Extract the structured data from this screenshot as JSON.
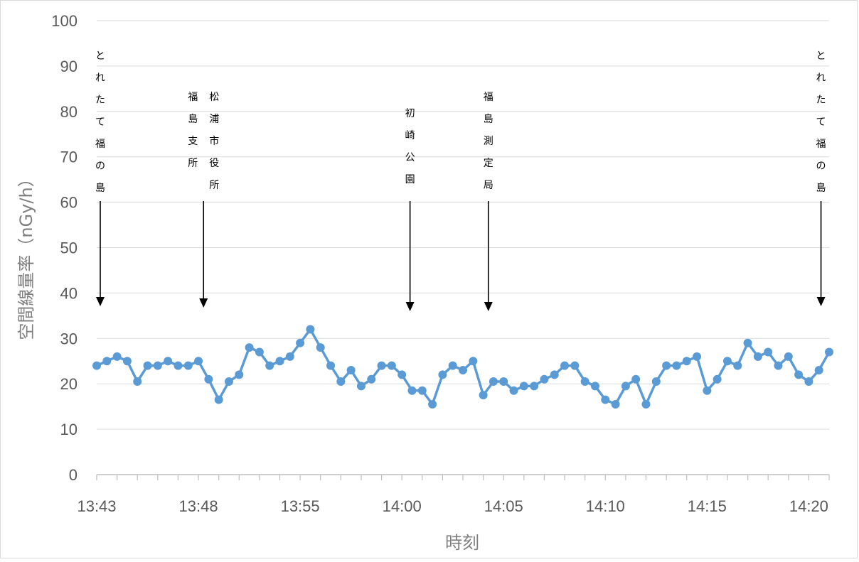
{
  "chart_data": {
    "type": "line",
    "title": "",
    "xlabel": "時刻",
    "ylabel": "空間線量率（nGy/h）",
    "ylim": [
      0,
      100
    ],
    "yticks": [
      0,
      10,
      20,
      30,
      40,
      50,
      60,
      70,
      80,
      90,
      100
    ],
    "x_tick_labels": [
      {
        "index": 0,
        "label": "13:43"
      },
      {
        "index": 10,
        "label": "13:48"
      },
      {
        "index": 20,
        "label": "13:55"
      },
      {
        "index": 30,
        "label": "14:00"
      },
      {
        "index": 40,
        "label": "14:05"
      },
      {
        "index": 50,
        "label": "14:10"
      },
      {
        "index": 60,
        "label": "14:15"
      },
      {
        "index": 70,
        "label": "14:20"
      }
    ],
    "grid": true,
    "legend": "none",
    "series": [
      {
        "color": "#5b9bd5",
        "values": [
          24,
          25,
          26,
          25,
          20.5,
          24,
          24,
          25,
          24,
          24,
          25,
          21,
          16.5,
          20.5,
          22,
          28,
          27,
          24,
          25,
          26,
          29,
          32,
          28,
          24,
          20.5,
          23,
          19.5,
          21,
          24,
          24,
          22,
          18.5,
          18.5,
          15.5,
          22,
          24,
          23,
          25,
          17.5,
          20.5,
          20.5,
          18.5,
          19.5,
          19.5,
          21,
          22,
          24,
          24,
          20.5,
          19.5,
          16.5,
          15.5,
          19.5,
          21,
          15.5,
          20.5,
          24,
          24,
          25,
          26,
          18.5,
          21,
          25,
          24,
          29,
          26,
          27,
          24,
          26,
          22,
          20.5,
          23,
          27
        ]
      }
    ],
    "annotations": [
      {
        "lines": [
          "とれたて福の島"
        ],
        "index": 0.35
      },
      {
        "lines": [
          "福島支所",
          "松浦市役所"
        ],
        "index": 10.5
      },
      {
        "lines": [
          "初崎公園"
        ],
        "index": 30.8
      },
      {
        "lines": [
          "福島測定局"
        ],
        "index": 38.5
      },
      {
        "lines": [
          "とれたて福の島"
        ],
        "index": 71.2
      }
    ]
  }
}
